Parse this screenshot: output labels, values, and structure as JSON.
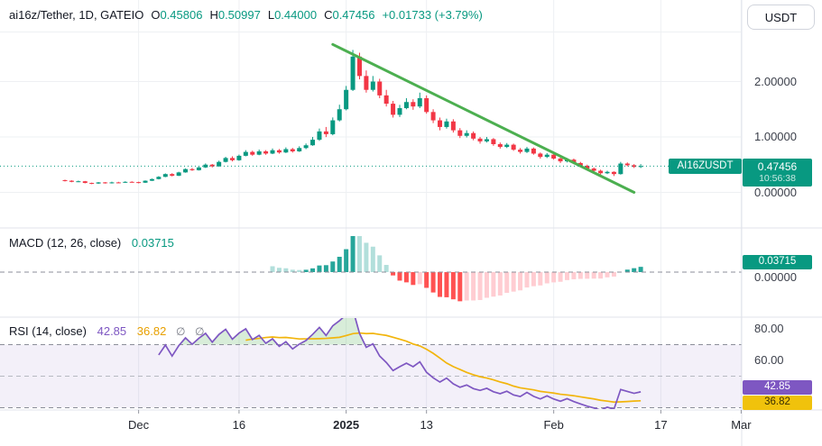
{
  "header": {
    "symbol_text": "ai16z/Tether, 1D, GATEIO",
    "ohlc": [
      {
        "label": "O",
        "value": "0.45806"
      },
      {
        "label": "H",
        "value": "0.50997"
      },
      {
        "label": "L",
        "value": "0.44000"
      },
      {
        "label": "C",
        "value": "0.47456"
      }
    ],
    "change_text": "+0.01733 (+3.79%)",
    "currency_button": "USDT"
  },
  "main_panel": {
    "symbol_badge": "AI16ZUSDT",
    "price_badge": {
      "price": "0.47456",
      "time": "10:56:38"
    },
    "y_ticks": [
      {
        "label": "2.00000",
        "value": 2
      },
      {
        "label": "1.00000",
        "value": 1
      },
      {
        "label": "0.00000",
        "value": 0
      }
    ]
  },
  "macd_panel": {
    "title": "MACD (12, 26, close)",
    "value": "0.03715",
    "badge": "0.03715",
    "zero_tick": {
      "label": "0.00000",
      "value": 0
    }
  },
  "rsi_panel": {
    "title": "RSI (14, close)",
    "value_rsi": "42.85",
    "value_ma": "36.82",
    "empty_markers": [
      "∅",
      "∅"
    ],
    "badges": {
      "rsi": "42.85",
      "ma": "36.82"
    },
    "y_ticks": [
      {
        "label": "80.00",
        "value": 80
      },
      {
        "label": "60.00",
        "value": 60
      }
    ],
    "levels": {
      "upper": 70,
      "middle": 50,
      "lower": 30
    }
  },
  "time_axis": {
    "ticks": [
      {
        "label": "Dec",
        "index": 11,
        "bold": false
      },
      {
        "label": "16",
        "index": 26,
        "bold": false
      },
      {
        "label": "2025",
        "index": 42,
        "bold": true
      },
      {
        "label": "13",
        "index": 54,
        "bold": false
      },
      {
        "label": "Feb",
        "index": 73,
        "bold": false
      },
      {
        "label": "17",
        "index": 89,
        "bold": false
      },
      {
        "label": "Mar",
        "index": 101,
        "bold": false
      }
    ]
  },
  "colors": {
    "up": "#089981",
    "down": "#F23645",
    "macd_up_strong": "#26A69A",
    "macd_up_weak": "#B2DFDB",
    "macd_down_strong": "#FF5252",
    "macd_down_weak": "#FFCDD2",
    "rsi_line": "#7E57C2",
    "rsi_ma_line": "#F2B50C",
    "rsi_band_fill": "rgba(126,87,194,0.09)",
    "overbought_fill": "rgba(76,175,80,0.22)",
    "trendline": "#4CAF50",
    "badge_up": "#089981",
    "rsi_badge": "#7E57C2",
    "rsi_ma_badge": "#F0C20C",
    "grid": "#eef0f3",
    "separator": "#e0e3eb",
    "dashed_level": "#8b8e99",
    "dashed_mid": "#b6b9c1"
  },
  "chart_data": {
    "type": "candlestick",
    "pair": "AI16Z/USDT",
    "interval": "1D",
    "exchange": "GATEIO",
    "last": {
      "open": 0.45806,
      "high": 0.50997,
      "low": 0.44,
      "close": 0.47456,
      "change": 0.01733,
      "change_pct": 3.79
    },
    "candles": [
      [
        0.22,
        0.23,
        0.198,
        0.21
      ],
      [
        0.21,
        0.218,
        0.183,
        0.19
      ],
      [
        0.19,
        0.212,
        0.185,
        0.2
      ],
      [
        0.2,
        0.206,
        0.163,
        0.17
      ],
      [
        0.17,
        0.176,
        0.148,
        0.16
      ],
      [
        0.16,
        0.186,
        0.152,
        0.18
      ],
      [
        0.18,
        0.186,
        0.158,
        0.165
      ],
      [
        0.165,
        0.192,
        0.16,
        0.18
      ],
      [
        0.18,
        0.19,
        0.168,
        0.175
      ],
      [
        0.175,
        0.2,
        0.17,
        0.19
      ],
      [
        0.19,
        0.2,
        0.178,
        0.185
      ],
      [
        0.185,
        0.192,
        0.163,
        0.175
      ],
      [
        0.175,
        0.216,
        0.17,
        0.21
      ],
      [
        0.21,
        0.25,
        0.204,
        0.24
      ],
      [
        0.24,
        0.292,
        0.234,
        0.28
      ],
      [
        0.28,
        0.342,
        0.274,
        0.33
      ],
      [
        0.33,
        0.346,
        0.288,
        0.3
      ],
      [
        0.3,
        0.372,
        0.294,
        0.36
      ],
      [
        0.36,
        0.432,
        0.354,
        0.42
      ],
      [
        0.42,
        0.44,
        0.388,
        0.4
      ],
      [
        0.4,
        0.462,
        0.394,
        0.45
      ],
      [
        0.45,
        0.522,
        0.44,
        0.5
      ],
      [
        0.5,
        0.512,
        0.45,
        0.47
      ],
      [
        0.47,
        0.572,
        0.46,
        0.55
      ],
      [
        0.55,
        0.642,
        0.54,
        0.62
      ],
      [
        0.62,
        0.65,
        0.558,
        0.58
      ],
      [
        0.58,
        0.682,
        0.57,
        0.66
      ],
      [
        0.66,
        0.762,
        0.65,
        0.73
      ],
      [
        0.73,
        0.752,
        0.66,
        0.68
      ],
      [
        0.68,
        0.772,
        0.67,
        0.74
      ],
      [
        0.74,
        0.762,
        0.678,
        0.7
      ],
      [
        0.7,
        0.792,
        0.69,
        0.76
      ],
      [
        0.76,
        0.782,
        0.698,
        0.72
      ],
      [
        0.72,
        0.812,
        0.71,
        0.78
      ],
      [
        0.78,
        0.802,
        0.718,
        0.74
      ],
      [
        0.74,
        0.832,
        0.73,
        0.8
      ],
      [
        0.8,
        0.882,
        0.78,
        0.85
      ],
      [
        0.85,
        1.0,
        0.84,
        0.95
      ],
      [
        0.95,
        1.152,
        0.93,
        1.1
      ],
      [
        1.1,
        1.18,
        0.998,
        1.05
      ],
      [
        1.05,
        1.352,
        1.03,
        1.3
      ],
      [
        1.3,
        1.582,
        1.28,
        1.5
      ],
      [
        1.5,
        1.92,
        1.48,
        1.85
      ],
      [
        1.85,
        2.57,
        1.83,
        2.45
      ],
      [
        2.45,
        2.52,
        2.04,
        2.1
      ],
      [
        2.1,
        2.2,
        1.8,
        1.85
      ],
      [
        1.85,
        2.1,
        1.82,
        2.0
      ],
      [
        2.0,
        2.05,
        1.7,
        1.75
      ],
      [
        1.75,
        1.85,
        1.55,
        1.6
      ],
      [
        1.6,
        1.65,
        1.35,
        1.4
      ],
      [
        1.4,
        1.58,
        1.36,
        1.52
      ],
      [
        1.52,
        1.7,
        1.5,
        1.63
      ],
      [
        1.63,
        1.68,
        1.49,
        1.55
      ],
      [
        1.55,
        1.8,
        1.52,
        1.7
      ],
      [
        1.7,
        1.75,
        1.42,
        1.45
      ],
      [
        1.45,
        1.5,
        1.25,
        1.3
      ],
      [
        1.3,
        1.35,
        1.12,
        1.18
      ],
      [
        1.18,
        1.33,
        1.15,
        1.28
      ],
      [
        1.28,
        1.32,
        1.08,
        1.12
      ],
      [
        1.12,
        1.16,
        0.98,
        1.02
      ],
      [
        1.02,
        1.12,
        0.99,
        1.07
      ],
      [
        1.07,
        1.1,
        0.94,
        0.97
      ],
      [
        0.97,
        1.0,
        0.88,
        0.92
      ],
      [
        0.92,
        1.0,
        0.9,
        0.96
      ],
      [
        0.96,
        0.98,
        0.84,
        0.87
      ],
      [
        0.87,
        0.9,
        0.79,
        0.82
      ],
      [
        0.82,
        0.89,
        0.8,
        0.86
      ],
      [
        0.86,
        0.88,
        0.75,
        0.77
      ],
      [
        0.77,
        0.8,
        0.7,
        0.73
      ],
      [
        0.73,
        0.82,
        0.71,
        0.79
      ],
      [
        0.79,
        0.81,
        0.68,
        0.7
      ],
      [
        0.7,
        0.72,
        0.61,
        0.64
      ],
      [
        0.64,
        0.71,
        0.62,
        0.68
      ],
      [
        0.68,
        0.7,
        0.59,
        0.61
      ],
      [
        0.61,
        0.63,
        0.53,
        0.56
      ],
      [
        0.56,
        0.62,
        0.54,
        0.59
      ],
      [
        0.59,
        0.61,
        0.51,
        0.53
      ],
      [
        0.53,
        0.55,
        0.46,
        0.48
      ],
      [
        0.48,
        0.5,
        0.41,
        0.43
      ],
      [
        0.43,
        0.45,
        0.37,
        0.39
      ],
      [
        0.39,
        0.41,
        0.32,
        0.345
      ],
      [
        0.345,
        0.39,
        0.33,
        0.37
      ],
      [
        0.37,
        0.38,
        0.295,
        0.33
      ],
      [
        0.33,
        0.55,
        0.32,
        0.52
      ],
      [
        0.52,
        0.54,
        0.47,
        0.49
      ],
      [
        0.49,
        0.51,
        0.44,
        0.46
      ],
      [
        0.45806,
        0.50997,
        0.44,
        0.47456
      ]
    ],
    "trendline": {
      "from_index": 40,
      "from_price": 2.67,
      "to_index": 85,
      "to_price": 0.0
    },
    "indicators": {
      "macd": {
        "fast": 12,
        "slow": 26,
        "signal": 9,
        "current_hist": 0.03715
      },
      "rsi": {
        "period": 14,
        "current": 42.85,
        "ma_current": 36.82,
        "overbought": 70,
        "oversold": 30
      }
    }
  }
}
